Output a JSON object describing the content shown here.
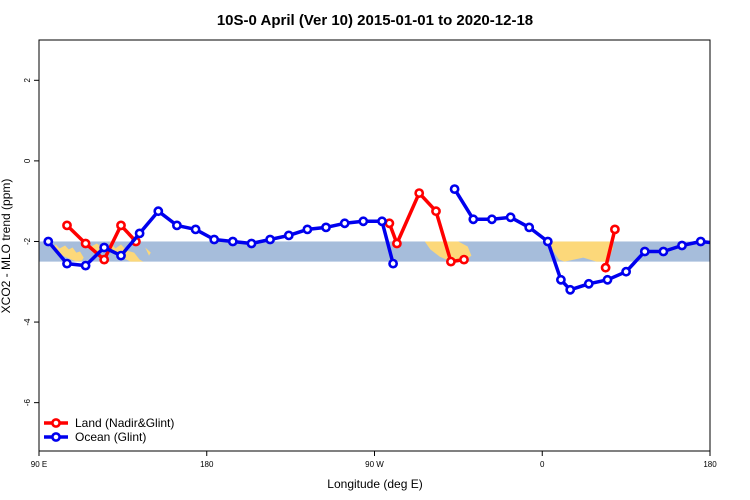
{
  "chart_data": {
    "type": "line",
    "title": "10S-0 April (Ver 10)   2015-01-01 to 2020-12-18",
    "xlabel": "Longitude (deg E)",
    "ylabel": "XCO2 - MLO trend (ppm)",
    "xlim": [
      90,
      450
    ],
    "ylim": [
      -7.2,
      3
    ],
    "x_ticks": [
      {
        "value": 90,
        "label": "90 E"
      },
      {
        "value": 180,
        "label": "180"
      },
      {
        "value": 270,
        "label": "90 W"
      },
      {
        "value": 360,
        "label": "0"
      },
      {
        "value": 450,
        "label": "180"
      }
    ],
    "x_ticks_secondary": [
      {
        "value": 450,
        "label": "90 E"
      }
    ],
    "y_ticks": [
      -6,
      -4,
      -2,
      0,
      2
    ],
    "band": {
      "ymin": -2.5,
      "ymax": -2.0,
      "color": "#a6bddb"
    },
    "land_color": "#fcd87a",
    "legend_position": "bottom-left",
    "series": [
      {
        "name": "Land (Nadir&Glint)",
        "color": "#ff0000",
        "segments": [
          [
            [
              105,
              -1.6
            ],
            [
              115,
              -2.05
            ],
            [
              125,
              -2.45
            ],
            [
              134,
              -1.6
            ],
            [
              142,
              -2.0
            ]
          ],
          [
            [
              278,
              -1.55
            ],
            [
              282,
              -2.05
            ],
            [
              294,
              -0.8
            ],
            [
              303,
              -1.25
            ],
            [
              311,
              -2.5
            ],
            [
              318,
              -2.45
            ]
          ],
          [
            [
              394,
              -2.65
            ],
            [
              399,
              -1.7
            ]
          ],
          [
            [
              465,
              -1.6
            ],
            [
              474,
              -2.05
            ],
            [
              482,
              -2.45
            ],
            [
              492,
              -1.6
            ],
            [
              500,
              -2.0
            ]
          ]
        ]
      },
      {
        "name": "Ocean (Glint)",
        "color": "#0000ee",
        "segments": [
          [
            [
              95,
              -2.0
            ],
            [
              105,
              -2.55
            ],
            [
              115,
              -2.6
            ],
            [
              125,
              -2.15
            ],
            [
              134,
              -2.35
            ],
            [
              144,
              -1.8
            ],
            [
              154,
              -1.25
            ],
            [
              164,
              -1.6
            ],
            [
              174,
              -1.7
            ],
            [
              184,
              -1.95
            ],
            [
              194,
              -2.0
            ],
            [
              204,
              -2.05
            ],
            [
              214,
              -1.95
            ],
            [
              224,
              -1.85
            ],
            [
              234,
              -1.7
            ],
            [
              244,
              -1.65
            ],
            [
              254,
              -1.55
            ],
            [
              264,
              -1.5
            ],
            [
              274,
              -1.5
            ],
            [
              280,
              -2.55
            ]
          ],
          [
            [
              313,
              -0.7
            ],
            [
              323,
              -1.45
            ],
            [
              333,
              -1.45
            ],
            [
              343,
              -1.4
            ],
            [
              353,
              -1.65
            ],
            [
              363,
              -2.0
            ],
            [
              370,
              -2.95
            ],
            [
              375,
              -3.2
            ],
            [
              385,
              -3.05
            ],
            [
              395,
              -2.95
            ],
            [
              405,
              -2.75
            ],
            [
              415,
              -2.25
            ],
            [
              425,
              -2.25
            ],
            [
              435,
              -2.1
            ],
            [
              445,
              -2.0
            ],
            [
              455,
              -2.05
            ],
            [
              465,
              -2.55
            ],
            [
              475,
              -2.6
            ],
            [
              485,
              -2.2
            ],
            [
              494,
              -2.35
            ],
            [
              504,
              -1.8
            ],
            [
              514,
              -1.25
            ],
            [
              524,
              -1.6
            ],
            [
              534,
              -1.7
            ]
          ]
        ]
      }
    ]
  }
}
